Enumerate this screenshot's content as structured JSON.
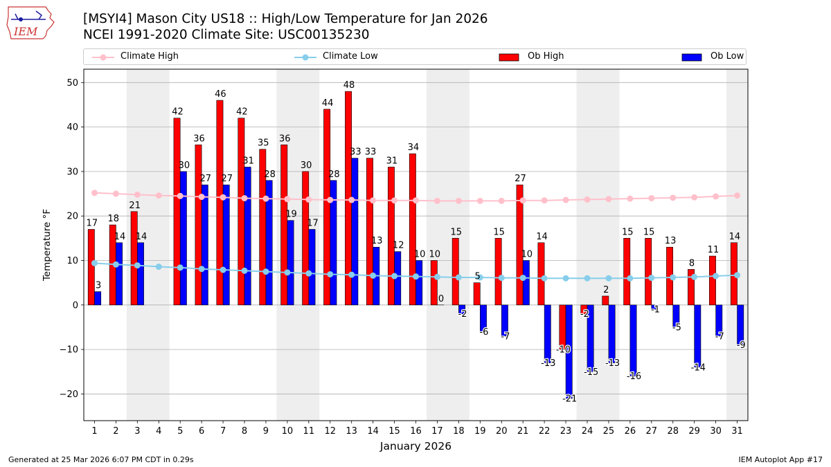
{
  "logo": {
    "text": "IEM"
  },
  "header": {
    "title_line1": "[MSYI4] Mason City US18 :: High/Low Temperature for Jan 2026",
    "title_line2": "NCEI 1991-2020 Climate Site: USC00135230"
  },
  "legend": {
    "placement": "top",
    "items": [
      {
        "label": "Climate High",
        "color": "#ffc0cb",
        "kind": "line"
      },
      {
        "label": "Climate Low",
        "color": "#87ceeb",
        "kind": "line"
      },
      {
        "label": "Ob High",
        "color": "#ff0000",
        "kind": "bar"
      },
      {
        "label": "Ob Low",
        "color": "#0000ff",
        "kind": "bar"
      }
    ]
  },
  "chart_data": {
    "type": "bar",
    "xlabel": "January 2026",
    "ylabel": "Temperature °F",
    "ylim": [
      -26,
      53
    ],
    "yticks": [
      -20,
      -10,
      0,
      10,
      20,
      30,
      40,
      50
    ],
    "grid": "y",
    "x": [
      1,
      2,
      3,
      4,
      5,
      6,
      7,
      8,
      9,
      10,
      11,
      12,
      13,
      14,
      15,
      16,
      17,
      18,
      19,
      20,
      21,
      22,
      23,
      24,
      25,
      26,
      27,
      28,
      29,
      30,
      31
    ],
    "weekend_shading": [
      [
        3,
        4
      ],
      [
        10,
        11
      ],
      [
        17,
        18
      ],
      [
        24,
        25
      ],
      [
        31,
        31
      ]
    ],
    "shade_color": "#eeeeee",
    "series": [
      {
        "name": "Ob High",
        "type": "bar",
        "color": "#ff0000",
        "values": [
          17,
          18,
          21,
          null,
          42,
          36,
          46,
          42,
          35,
          36,
          30,
          44,
          48,
          33,
          31,
          34,
          10,
          15,
          5,
          15,
          27,
          14,
          -10,
          -2,
          2,
          15,
          15,
          13,
          8,
          11,
          14
        ]
      },
      {
        "name": "Ob Low",
        "type": "bar",
        "color": "#0000ff",
        "values": [
          3,
          14,
          14,
          null,
          30,
          27,
          27,
          31,
          28,
          19,
          17,
          28,
          33,
          13,
          12,
          10,
          0,
          -2,
          -6,
          -7,
          10,
          -13,
          -21,
          -15,
          -13,
          -16,
          -1,
          -5,
          -14,
          -7,
          -9
        ]
      },
      {
        "name": "Climate High",
        "type": "line",
        "color": "#ffc0cb",
        "values": [
          25.2,
          25.0,
          24.8,
          24.6,
          24.5,
          24.3,
          24.2,
          24.0,
          23.9,
          23.8,
          23.7,
          23.6,
          23.6,
          23.5,
          23.5,
          23.5,
          23.4,
          23.4,
          23.4,
          23.4,
          23.5,
          23.5,
          23.6,
          23.7,
          23.8,
          23.9,
          24.0,
          24.1,
          24.2,
          24.4,
          24.6
        ]
      },
      {
        "name": "Climate Low",
        "type": "line",
        "color": "#87ceeb",
        "values": [
          9.4,
          9.1,
          8.9,
          8.6,
          8.4,
          8.1,
          7.9,
          7.7,
          7.5,
          7.3,
          7.1,
          6.9,
          6.8,
          6.6,
          6.5,
          6.4,
          6.3,
          6.2,
          6.2,
          6.1,
          6.1,
          6.0,
          6.0,
          6.0,
          6.0,
          6.0,
          6.1,
          6.2,
          6.3,
          6.5,
          6.7
        ]
      }
    ]
  },
  "footer": {
    "left": "Generated at 25 Mar 2026 6:07 PM CDT in 0.29s",
    "right": "IEM Autoplot App #17"
  }
}
